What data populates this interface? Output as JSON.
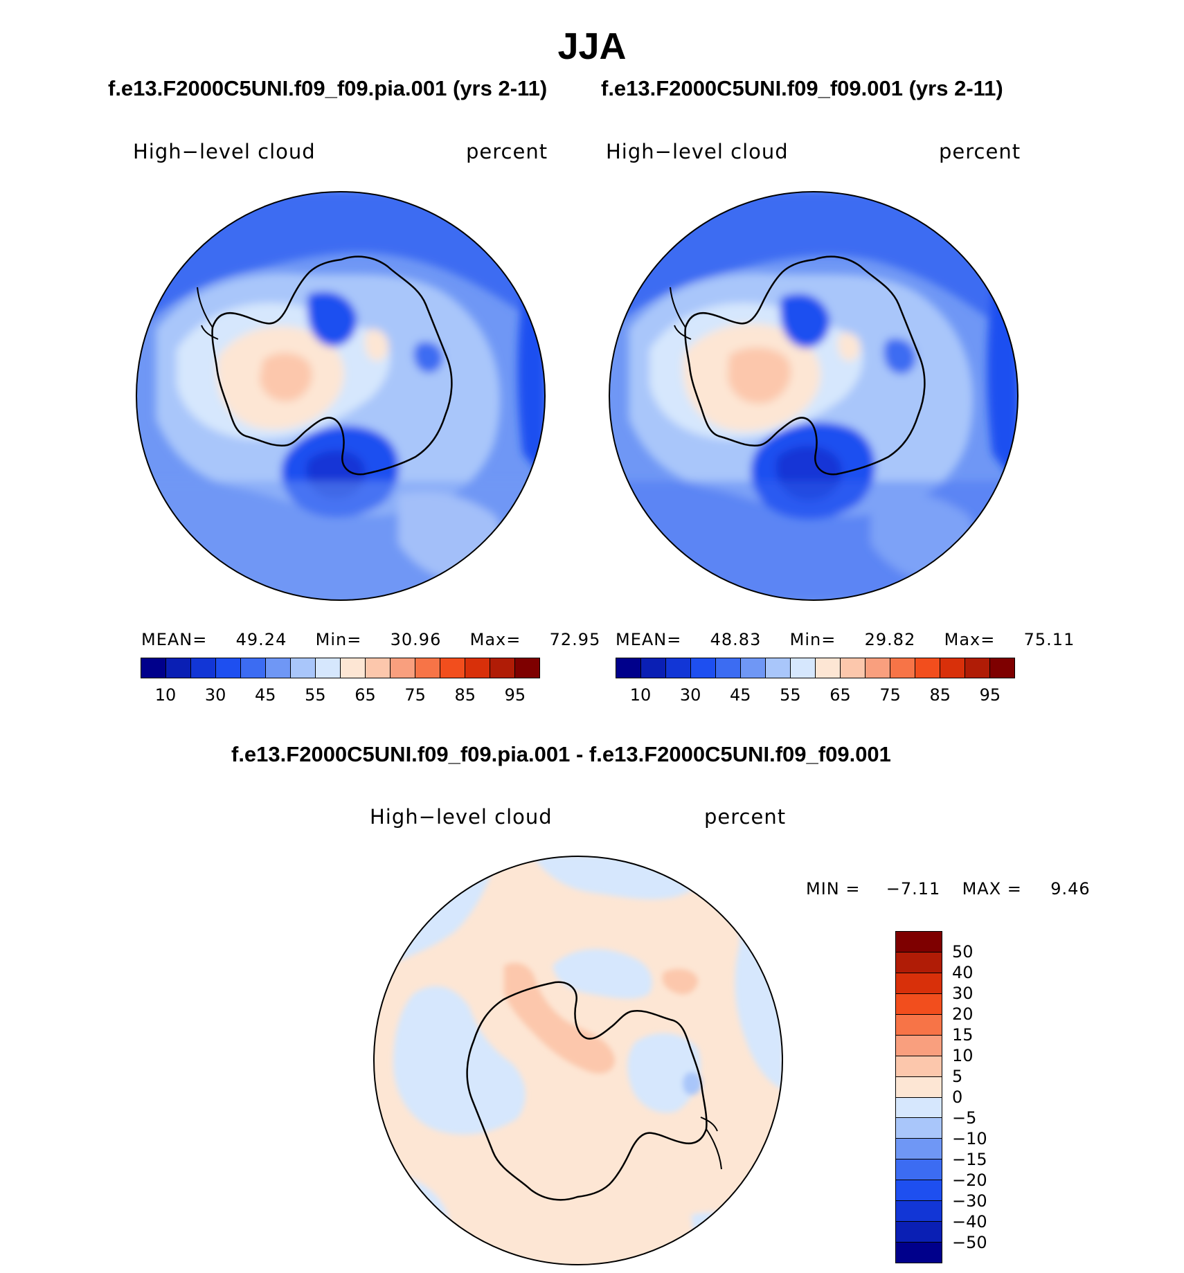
{
  "title": "JJA",
  "panels": {
    "a": {
      "case": "f.e13.F2000C5UNI.f09_f09.pia.001 (yrs 2-11)",
      "variable": "High−level cloud",
      "units": "percent",
      "stats": {
        "mean_label": "MEAN=",
        "mean": "49.24",
        "min_label": "Min=",
        "min": "30.96",
        "max_label": "Max=",
        "max": "72.95"
      }
    },
    "b": {
      "case": "f.e13.F2000C5UNI.f09_f09.001 (yrs 2-11)",
      "variable": "High−level cloud",
      "units": "percent",
      "stats": {
        "mean_label": "MEAN=",
        "mean": "48.83",
        "min_label": "Min=",
        "min": "29.82",
        "max_label": "Max=",
        "max": "75.11"
      }
    },
    "diff": {
      "case": "f.e13.F2000C5UNI.f09_f09.pia.001 - f.e13.F2000C5UNI.f09_f09.001",
      "variable": "High−level cloud",
      "units": "percent",
      "stats": {
        "min_label": "MIN =",
        "min": "−7.11",
        "max_label": "MAX =",
        "max": "9.46"
      }
    }
  },
  "colorbar_main": {
    "colors": [
      "#00008b",
      "#0a1fb4",
      "#1236d6",
      "#1e4ff0",
      "#3c6cf2",
      "#6f97f5",
      "#a9c6fa",
      "#d6e7fd",
      "#fde6d4",
      "#fcc7ac",
      "#f99f7e",
      "#f77447",
      "#f24e1d",
      "#d8300a",
      "#b01c06",
      "#7e0000"
    ],
    "ticks": [
      "10",
      "30",
      "45",
      "55",
      "65",
      "75",
      "85",
      "95"
    ]
  },
  "colorbar_diff": {
    "colors": [
      "#7e0000",
      "#b01c06",
      "#d8300a",
      "#f24e1d",
      "#f77447",
      "#f99f7e",
      "#fcc7ac",
      "#fde6d4",
      "#d6e7fd",
      "#a9c6fa",
      "#6f97f5",
      "#3c6cf2",
      "#1e4ff0",
      "#1236d6",
      "#0a1fb4",
      "#00008b"
    ],
    "ticks": [
      "50",
      "40",
      "30",
      "20",
      "15",
      "10",
      "5",
      "0",
      "−5",
      "−10",
      "−15",
      "−20",
      "−30",
      "−40",
      "−50"
    ]
  },
  "chart_data": [
    {
      "type": "heatmap",
      "title": "High−level cloud",
      "subtitle": "f.e13.F2000C5UNI.f09_f09.pia.001 (yrs 2-11)",
      "units": "percent",
      "projection": "south polar stereographic",
      "levels": [
        5,
        10,
        20,
        30,
        40,
        45,
        50,
        55,
        60,
        65,
        70,
        75,
        80,
        85,
        90,
        95
      ],
      "mean": 49.24,
      "min": 30.96,
      "max": 72.95
    },
    {
      "type": "heatmap",
      "title": "High−level cloud",
      "subtitle": "f.e13.F2000C5UNI.f09_f09.001 (yrs 2-11)",
      "units": "percent",
      "projection": "south polar stereographic",
      "levels": [
        5,
        10,
        20,
        30,
        40,
        45,
        50,
        55,
        60,
        65,
        70,
        75,
        80,
        85,
        90,
        95
      ],
      "mean": 48.83,
      "min": 29.82,
      "max": 75.11
    },
    {
      "type": "heatmap",
      "title": "High−level cloud",
      "subtitle": "f.e13.F2000C5UNI.f09_f09.pia.001 - f.e13.F2000C5UNI.f09_f09.001",
      "units": "percent",
      "projection": "south polar stereographic",
      "levels": [
        -50,
        -40,
        -30,
        -20,
        -15,
        -10,
        -5,
        0,
        5,
        10,
        15,
        20,
        30,
        40,
        50
      ],
      "min": -7.11,
      "max": 9.46
    }
  ]
}
